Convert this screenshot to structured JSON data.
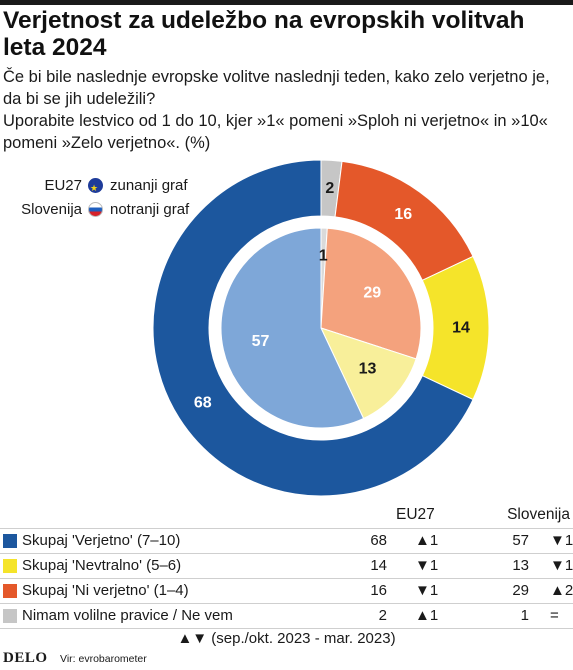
{
  "title": "Verjetnost za udeležbo na evropskih volitvah leta 2024",
  "subtitle_1": "Če bi bile naslednje evropske volitve naslednji teden, kako zelo verjetno je, da bi se jih udeležili?",
  "subtitle_2": "Uporabite lestvico od 1 do 10, kjer »1« pomeni »Sploh ni verjetno« in »10« pomeni »Zelo verjetno«. (%)",
  "legend": [
    {
      "name": "EU27",
      "text": "zunanji graf",
      "icon": "eu-flag-icon"
    },
    {
      "name": "Slovenija",
      "text": "notranji graf",
      "icon": "slovenia-flag-icon"
    }
  ],
  "chart_data": {
    "type": "pie",
    "outer": {
      "name": "EU27",
      "slices": [
        {
          "label": "Nimam volilne pravice / Ne vem",
          "value": 2,
          "color": "#c6c6c6"
        },
        {
          "label": "Skupaj 'Ni verjetno' (1–4)",
          "value": 16,
          "color": "#e4582a"
        },
        {
          "label": "Skupaj 'Nevtralno' (5–6)",
          "value": 14,
          "color": "#f5e42a"
        },
        {
          "label": "Skupaj 'Verjetno' (7–10)",
          "value": 68,
          "color": "#1c579e"
        }
      ]
    },
    "inner": {
      "name": "Slovenija",
      "slices": [
        {
          "label": "Nimam volilne pravice / Ne vem",
          "value": 1,
          "color": "#dadada"
        },
        {
          "label": "Skupaj 'Ni verjetno' (1–4)",
          "value": 29,
          "color": "#f4a27d"
        },
        {
          "label": "Skupaj 'Nevtralno' (5–6)",
          "value": 13,
          "color": "#f8ef9a"
        },
        {
          "label": "Skupaj 'Verjetno' (7–10)",
          "value": 57,
          "color": "#7ea7d8"
        }
      ]
    }
  },
  "table": {
    "col_eu": "EU27",
    "col_si": "Slovenija",
    "rows": [
      {
        "label": "Skupaj 'Verjetno' (7–10)",
        "color": "#1c579e",
        "eu": "68",
        "eu_change": "▲1",
        "si": "57",
        "si_change": "▼1"
      },
      {
        "label": "Skupaj 'Nevtralno' (5–6)",
        "color": "#f5e42a",
        "eu": "14",
        "eu_change": "▼1",
        "si": "13",
        "si_change": "▼1"
      },
      {
        "label": "Skupaj 'Ni verjetno' (1–4)",
        "color": "#e4582a",
        "eu": "16",
        "eu_change": "▼1",
        "si": "29",
        "si_change": "▲2"
      },
      {
        "label": "Nimam volilne pravice / Ne vem",
        "color": "#c6c6c6",
        "eu": "2",
        "eu_change": "▲1",
        "si": "1",
        "si_change": "="
      }
    ]
  },
  "note": "▲▼ (sep./okt. 2023 - mar. 2023)",
  "footer": {
    "logo": "DELO",
    "source": "Vir: evrobarometer"
  }
}
